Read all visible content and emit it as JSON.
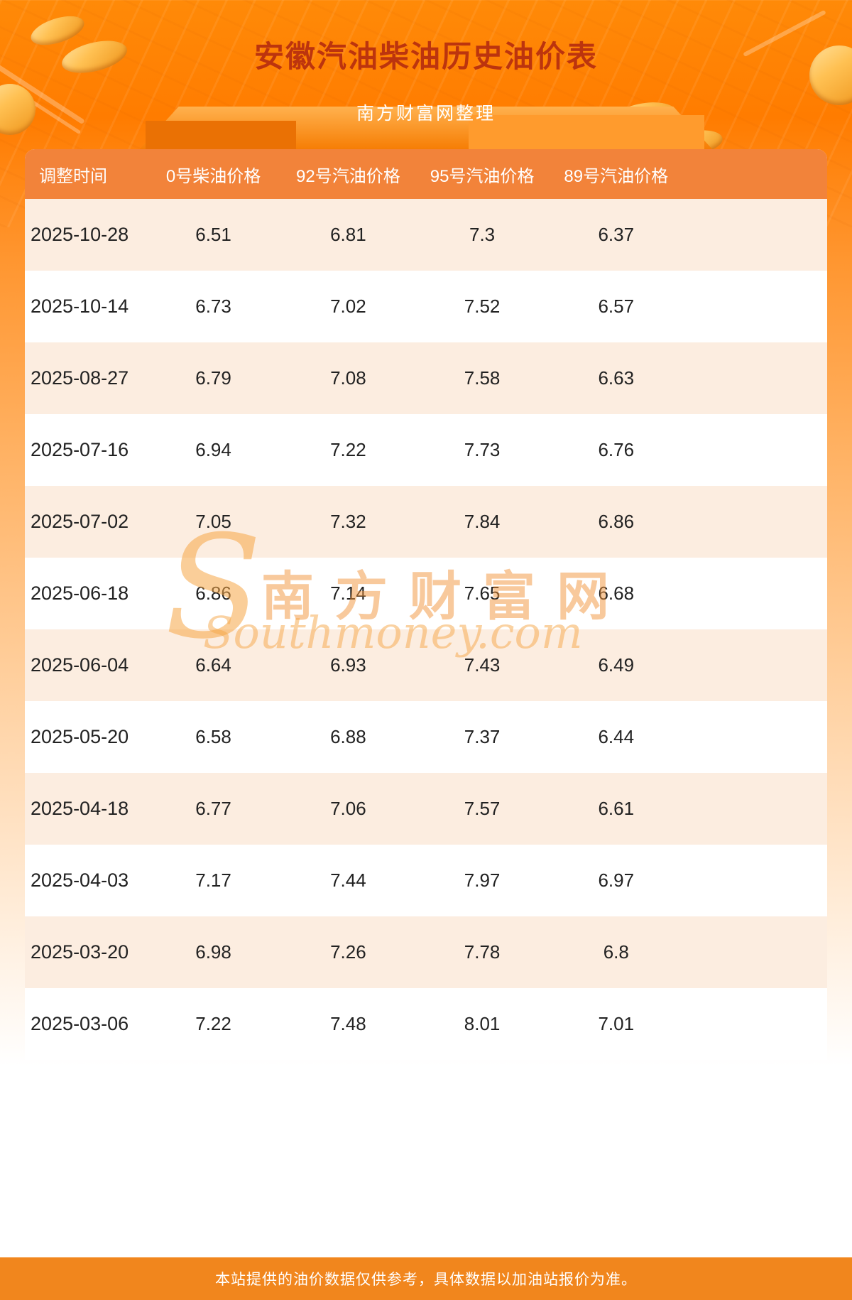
{
  "header": {
    "title": "安徽汽油柴油历史油价表",
    "subtitle": "南方财富网整理"
  },
  "table": {
    "columns": [
      "调整时间",
      "0号柴油价格",
      "92号汽油价格",
      "95号汽油价格",
      "89号汽油价格"
    ],
    "rows": [
      [
        "2025-10-28",
        "6.51",
        "6.81",
        "7.3",
        "6.37"
      ],
      [
        "2025-10-14",
        "6.73",
        "7.02",
        "7.52",
        "6.57"
      ],
      [
        "2025-08-27",
        "6.79",
        "7.08",
        "7.58",
        "6.63"
      ],
      [
        "2025-07-16",
        "6.94",
        "7.22",
        "7.73",
        "6.76"
      ],
      [
        "2025-07-02",
        "7.05",
        "7.32",
        "7.84",
        "6.86"
      ],
      [
        "2025-06-18",
        "6.86",
        "7.14",
        "7.65",
        "6.68"
      ],
      [
        "2025-06-04",
        "6.64",
        "6.93",
        "7.43",
        "6.49"
      ],
      [
        "2025-05-20",
        "6.58",
        "6.88",
        "7.37",
        "6.44"
      ],
      [
        "2025-04-18",
        "6.77",
        "7.06",
        "7.57",
        "6.61"
      ],
      [
        "2025-04-03",
        "7.17",
        "7.44",
        "7.97",
        "6.97"
      ],
      [
        "2025-03-20",
        "6.98",
        "7.26",
        "7.78",
        "6.8"
      ],
      [
        "2025-03-06",
        "7.22",
        "7.48",
        "8.01",
        "7.01"
      ]
    ]
  },
  "watermark": {
    "initial": "S",
    "cn": "南方财富网",
    "en": "Southmoney.com"
  },
  "footer": {
    "text": "本站提供的油价数据仅供参考，具体数据以加油站报价为准。"
  },
  "colors": {
    "page_top": "#ff8a08",
    "title_text": "#bc340e",
    "table_header_bg": "#f2833a",
    "row_alt_bg": "#fcede0",
    "footer_bg": "#f1861d"
  }
}
